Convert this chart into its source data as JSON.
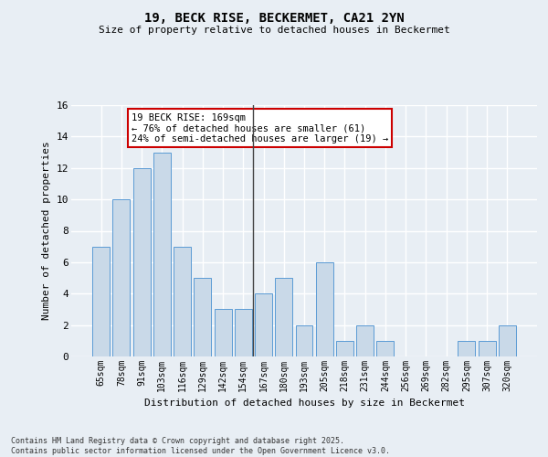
{
  "title": "19, BECK RISE, BECKERMET, CA21 2YN",
  "subtitle": "Size of property relative to detached houses in Beckermet",
  "xlabel": "Distribution of detached houses by size in Beckermet",
  "ylabel": "Number of detached properties",
  "categories": [
    "65sqm",
    "78sqm",
    "91sqm",
    "103sqm",
    "116sqm",
    "129sqm",
    "142sqm",
    "154sqm",
    "167sqm",
    "180sqm",
    "193sqm",
    "205sqm",
    "218sqm",
    "231sqm",
    "244sqm",
    "256sqm",
    "269sqm",
    "282sqm",
    "295sqm",
    "307sqm",
    "320sqm"
  ],
  "values": [
    7,
    10,
    12,
    13,
    7,
    5,
    3,
    3,
    4,
    5,
    2,
    6,
    1,
    2,
    1,
    0,
    0,
    0,
    1,
    1,
    2
  ],
  "bar_color": "#c9d9e8",
  "bar_edge_color": "#5b9bd5",
  "vline_index": 8,
  "vline_color": "#444444",
  "annotation_text": "19 BECK RISE: 169sqm\n← 76% of detached houses are smaller (61)\n24% of semi-detached houses are larger (19) →",
  "annotation_box_color": "#cc0000",
  "ylim": [
    0,
    16
  ],
  "yticks": [
    0,
    2,
    4,
    6,
    8,
    10,
    12,
    14,
    16
  ],
  "background_color": "#e8eef4",
  "grid_color": "#ffffff",
  "footnote": "Contains HM Land Registry data © Crown copyright and database right 2025.\nContains public sector information licensed under the Open Government Licence v3.0."
}
